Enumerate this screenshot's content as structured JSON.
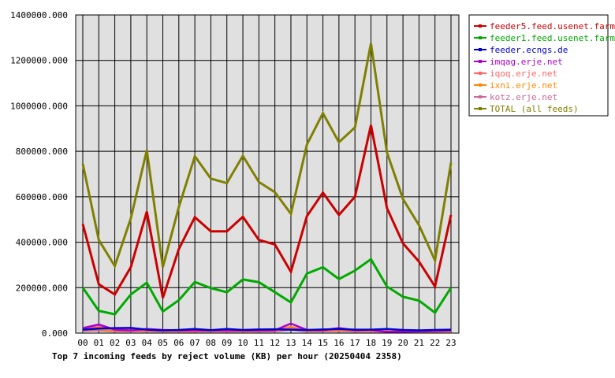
{
  "chart_data": {
    "type": "line",
    "title": "Top 7 incoming feeds by reject volume (KB) per hour (20250404 2358)",
    "categories": [
      "00",
      "01",
      "02",
      "03",
      "04",
      "05",
      "06",
      "07",
      "08",
      "09",
      "10",
      "11",
      "12",
      "13",
      "14",
      "15",
      "16",
      "17",
      "18",
      "19",
      "20",
      "21",
      "22",
      "23"
    ],
    "ylim": [
      0,
      1400000
    ],
    "yticks": [
      0,
      200000,
      400000,
      600000,
      800000,
      1000000,
      1200000,
      1400000
    ],
    "ytick_labels": [
      "0.000",
      "200000.000",
      "400000.000",
      "600000.000",
      "800000.000",
      "1000000.000",
      "1200000.000",
      "1400000.000"
    ],
    "grid": true,
    "legend_position": "right",
    "plot_background": "#e0e0e0",
    "series": [
      {
        "name": "feeder5.feed.usenet.farm",
        "color": "#cc0000",
        "values": [
          480000,
          215000,
          170000,
          290000,
          535000,
          155000,
          370000,
          510000,
          448000,
          448000,
          512000,
          410000,
          390000,
          270000,
          515000,
          618000,
          520000,
          600000,
          915000,
          550000,
          395000,
          315000,
          205000,
          520000
        ]
      },
      {
        "name": "feeder1.feed.usenet.farm",
        "color": "#00aa00",
        "values": [
          200000,
          98000,
          83000,
          170000,
          222000,
          95000,
          145000,
          225000,
          198000,
          180000,
          236000,
          224000,
          180000,
          135000,
          262000,
          290000,
          238000,
          275000,
          325000,
          205000,
          160000,
          143000,
          90000,
          200000
        ]
      },
      {
        "name": "feeder.ecngs.de",
        "color": "#0000cc",
        "values": [
          15000,
          20000,
          22000,
          23000,
          15000,
          12000,
          14000,
          18000,
          13000,
          18000,
          14000,
          16000,
          17000,
          15000,
          14000,
          16000,
          18000,
          15000,
          15000,
          18000,
          14000,
          12000,
          14000,
          15000
        ]
      },
      {
        "name": "imqag.erje.net",
        "color": "#aa00cc",
        "values": [
          22000,
          38000,
          15000,
          12000,
          18000,
          14000,
          12000,
          12000,
          13000,
          12000,
          12000,
          12000,
          13000,
          42000,
          14000,
          13000,
          22000,
          13000,
          15000,
          5000,
          6000,
          8000,
          10000,
          12000
        ]
      },
      {
        "name": "iqoq.erje.net",
        "color": "#ff6666",
        "values": [
          18000,
          28000,
          12000,
          10000,
          10000,
          10000,
          9000,
          10000,
          10000,
          10000,
          10000,
          11000,
          11000,
          22000,
          12000,
          12000,
          15000,
          10000,
          10000,
          8000,
          8000,
          7000,
          8000,
          9000
        ]
      },
      {
        "name": "ixni.erje.net",
        "color": "#ff8800",
        "values": [
          14000,
          18000,
          10000,
          9000,
          9000,
          9000,
          8000,
          8000,
          9000,
          9000,
          8000,
          9000,
          10000,
          28000,
          10000,
          10000,
          12000,
          9000,
          9000,
          8000,
          8000,
          7000,
          7000,
          8000
        ]
      },
      {
        "name": "kotz.erje.net",
        "color": "#cc6699",
        "values": [
          10000,
          12000,
          8000,
          8000,
          8000,
          7000,
          7000,
          7000,
          7000,
          7000,
          7000,
          7000,
          8000,
          15000,
          8000,
          8000,
          9000,
          7000,
          7000,
          6000,
          6000,
          5000,
          6000,
          7000
        ]
      },
      {
        "name": "TOTAL (all feeds)",
        "color": "#808000",
        "values": [
          745000,
          410000,
          295000,
          505000,
          805000,
          290000,
          555000,
          778000,
          680000,
          660000,
          780000,
          665000,
          620000,
          525000,
          830000,
          968000,
          840000,
          905000,
          1275000,
          795000,
          590000,
          475000,
          320000,
          750000
        ]
      }
    ]
  }
}
